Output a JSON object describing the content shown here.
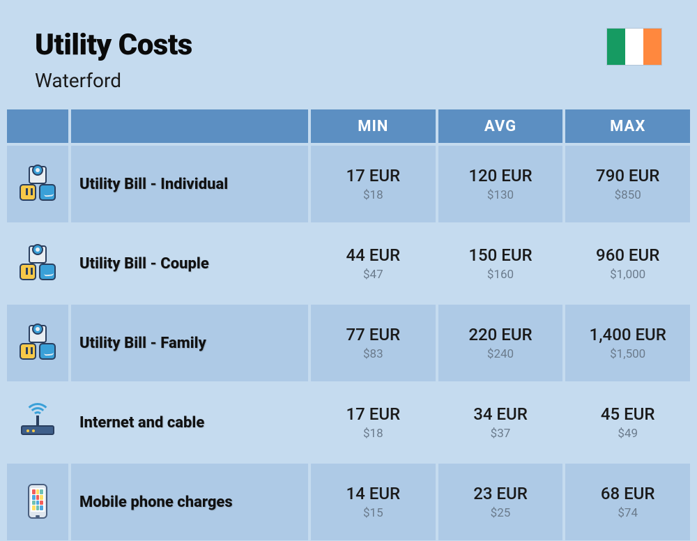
{
  "header": {
    "title": "Utility Costs",
    "subtitle": "Waterford",
    "flag_colors": [
      "#169b62",
      "#ffffff",
      "#ff883e"
    ]
  },
  "columns": [
    "MIN",
    "AVG",
    "MAX"
  ],
  "colors": {
    "page_bg": "#c5dbef",
    "header_cell_bg": "#5c8fc2",
    "row_dark_bg": "#aecae6",
    "row_light_bg": "#c5dbef",
    "eur_text": "#1a1a1a",
    "usd_text": "#6b7b8c"
  },
  "rows": [
    {
      "icon": "utility",
      "label": "Utility Bill - Individual",
      "shade": "dark",
      "min_eur": "17 EUR",
      "min_usd": "$18",
      "avg_eur": "120 EUR",
      "avg_usd": "$130",
      "max_eur": "790 EUR",
      "max_usd": "$850"
    },
    {
      "icon": "utility",
      "label": "Utility Bill - Couple",
      "shade": "light",
      "min_eur": "44 EUR",
      "min_usd": "$47",
      "avg_eur": "150 EUR",
      "avg_usd": "$160",
      "max_eur": "960 EUR",
      "max_usd": "$1,000"
    },
    {
      "icon": "utility",
      "label": "Utility Bill - Family",
      "shade": "dark",
      "min_eur": "77 EUR",
      "min_usd": "$83",
      "avg_eur": "220 EUR",
      "avg_usd": "$240",
      "max_eur": "1,400 EUR",
      "max_usd": "$1,500"
    },
    {
      "icon": "router",
      "label": "Internet and cable",
      "shade": "light",
      "min_eur": "17 EUR",
      "min_usd": "$18",
      "avg_eur": "34 EUR",
      "avg_usd": "$37",
      "max_eur": "45 EUR",
      "max_usd": "$49"
    },
    {
      "icon": "phone",
      "label": "Mobile phone charges",
      "shade": "dark",
      "min_eur": "14 EUR",
      "min_usd": "$15",
      "avg_eur": "23 EUR",
      "avg_usd": "$25",
      "max_eur": "68 EUR",
      "max_usd": "$74"
    }
  ],
  "phone_app_colors": [
    "#f25f5c",
    "#ffe066",
    "#70c1b3",
    "#50a7e0",
    "#f25f5c",
    "#ffe066",
    "#70c1b3",
    "#50a7e0",
    "#f25f5c",
    "#ffe066",
    "#70c1b3",
    "#50a7e0"
  ]
}
